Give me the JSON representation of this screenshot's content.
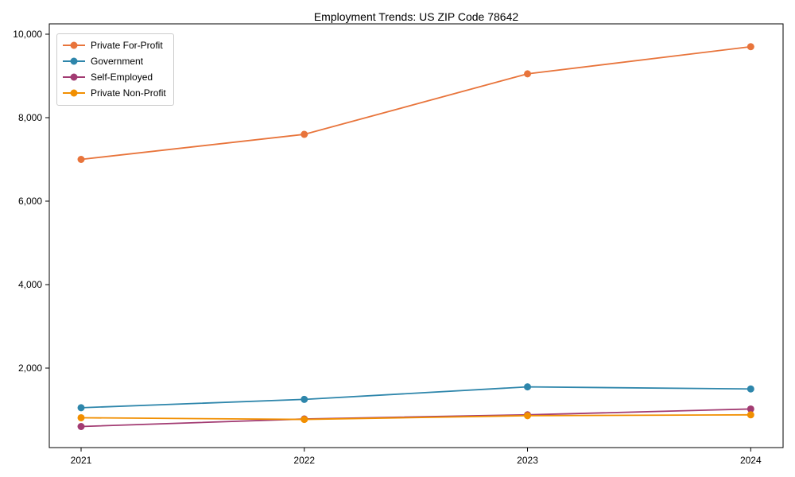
{
  "chart_data": {
    "type": "line",
    "title": "Employment Trends: US ZIP Code 78642",
    "xlabel": "",
    "ylabel": "",
    "x": [
      "2021",
      "2022",
      "2023",
      "2024"
    ],
    "series": [
      {
        "name": "Private For-Profit",
        "color": "#E8743B",
        "values": [
          7000,
          7600,
          9050,
          9700
        ]
      },
      {
        "name": "Government",
        "color": "#2E86AB",
        "values": [
          1050,
          1250,
          1550,
          1500
        ]
      },
      {
        "name": "Self-Employed",
        "color": "#A23B72",
        "values": [
          600,
          780,
          880,
          1020
        ]
      },
      {
        "name": "Private Non-Profit",
        "color": "#F18F01",
        "values": [
          810,
          770,
          860,
          880
        ]
      }
    ],
    "yticks": [
      {
        "value": 2000,
        "label": "2,000"
      },
      {
        "value": 4000,
        "label": "4,000"
      },
      {
        "value": 6000,
        "label": "6,000"
      },
      {
        "value": 8000,
        "label": "8,000"
      },
      {
        "value": 10000,
        "label": "10,000"
      }
    ],
    "ylim": [
      100,
      10250
    ],
    "grid": false,
    "legend_position": "upper left",
    "spine_color": "#000000",
    "background_color": "#ffffff"
  }
}
